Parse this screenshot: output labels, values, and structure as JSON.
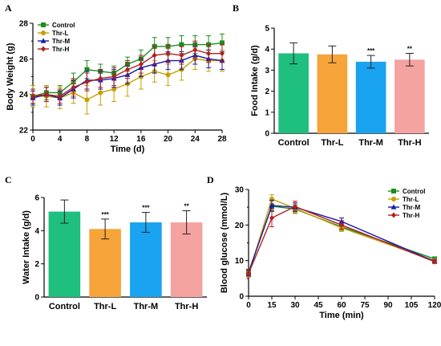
{
  "colors": {
    "Control": "#1e8c1e",
    "Thr-L": "#c8a000",
    "Thr-M": "#1a1aa6",
    "Thr-H": "#b02020",
    "bar_Control": "#1fbf7f",
    "bar_Thr-L": "#f7a43a",
    "bar_Thr-M": "#1aa3f0",
    "bar_Thr-H": "#f5a3a0"
  },
  "chart_data": [
    {
      "panel": "A",
      "type": "line",
      "xlabel": "Time (d)",
      "ylabel": "Body Weight (g)",
      "xlim": [
        0,
        28
      ],
      "ylim": [
        22,
        28
      ],
      "xticks": [
        0,
        4,
        8,
        12,
        16,
        20,
        24,
        28
      ],
      "yticks": [
        22,
        24,
        26,
        28
      ],
      "x": [
        0,
        2,
        4,
        6,
        8,
        10,
        12,
        14,
        16,
        18,
        20,
        22,
        24,
        26,
        28
      ],
      "legend": "top-left",
      "series": [
        {
          "name": "Control",
          "marker": "square",
          "values": [
            23.9,
            24.1,
            24.1,
            24.7,
            25.4,
            25.3,
            25.2,
            25.7,
            26.0,
            26.7,
            26.7,
            26.8,
            26.8,
            26.8,
            26.9
          ],
          "errors": [
            0.4,
            0.4,
            0.4,
            0.5,
            0.5,
            0.4,
            0.4,
            0.4,
            0.5,
            0.5,
            0.5,
            0.5,
            0.5,
            0.5,
            0.5
          ]
        },
        {
          "name": "Thr-L",
          "marker": "circle",
          "values": [
            23.9,
            23.9,
            23.8,
            24.1,
            23.7,
            24.1,
            24.3,
            24.6,
            25.0,
            25.3,
            25.1,
            25.4,
            26.0,
            25.9,
            25.9
          ],
          "errors": [
            0.6,
            0.6,
            0.6,
            0.6,
            0.8,
            0.7,
            0.7,
            0.7,
            0.7,
            0.6,
            0.6,
            0.6,
            0.6,
            0.6,
            0.6
          ]
        },
        {
          "name": "Thr-M",
          "marker": "triangle",
          "values": [
            23.8,
            24.0,
            23.8,
            24.3,
            24.8,
            24.8,
            24.9,
            25.1,
            25.5,
            25.7,
            25.9,
            25.9,
            26.2,
            26.0,
            25.9
          ],
          "errors": [
            0.4,
            0.4,
            0.4,
            0.5,
            0.5,
            0.5,
            0.5,
            0.5,
            0.5,
            0.5,
            0.5,
            0.5,
            0.5,
            0.5,
            0.5
          ]
        },
        {
          "name": "Thr-H",
          "marker": "diamond",
          "values": [
            23.9,
            24.0,
            23.9,
            24.4,
            24.7,
            24.9,
            25.0,
            25.4,
            25.7,
            26.2,
            26.3,
            26.2,
            26.5,
            26.3,
            26.3
          ],
          "errors": [
            0.4,
            0.4,
            0.4,
            0.5,
            0.5,
            0.5,
            0.5,
            0.5,
            0.5,
            0.5,
            0.5,
            0.5,
            0.5,
            0.5,
            0.5
          ]
        }
      ]
    },
    {
      "panel": "B",
      "type": "bar",
      "categories": [
        "Control",
        "Thr-L",
        "Thr-M",
        "Thr-H"
      ],
      "values": [
        3.8,
        3.75,
        3.4,
        3.5
      ],
      "errors": [
        0.5,
        0.4,
        0.3,
        0.3
      ],
      "significance": [
        "",
        "",
        "***",
        "**"
      ],
      "ylabel": "Food Intake (g/d)",
      "ylim": [
        0,
        5
      ],
      "yticks": [
        0,
        1,
        2,
        3,
        4,
        5
      ]
    },
    {
      "panel": "C",
      "type": "bar",
      "categories": [
        "Control",
        "Thr-L",
        "Thr-M",
        "Thr-H"
      ],
      "values": [
        5.15,
        4.1,
        4.5,
        4.5
      ],
      "errors": [
        0.7,
        0.6,
        0.6,
        0.7
      ],
      "significance": [
        "",
        "***",
        "***",
        "**"
      ],
      "ylabel": "Water Intake (g/d)",
      "ylim": [
        0,
        6
      ],
      "yticks": [
        0,
        2,
        4,
        6
      ]
    },
    {
      "panel": "D",
      "type": "line",
      "xlabel": "Time (min)",
      "ylabel": "Blood glucose (mmol/L)",
      "xlim": [
        0,
        120
      ],
      "ylim": [
        0,
        30
      ],
      "xticks": [
        0,
        15,
        30,
        45,
        60,
        75,
        90,
        105,
        120
      ],
      "yticks": [
        0,
        10,
        20,
        30
      ],
      "x": [
        0,
        15,
        30,
        60,
        120
      ],
      "legend": "top-right",
      "series": [
        {
          "name": "Control",
          "marker": "square",
          "values": [
            6.8,
            25.3,
            24.5,
            19.5,
            10.5
          ],
          "errors": [
            0.8,
            1.5,
            1.2,
            1.0,
            0.5
          ]
        },
        {
          "name": "Thr-L",
          "marker": "circle",
          "values": [
            6.2,
            27.3,
            24.7,
            19.2,
            10.0
          ],
          "errors": [
            0.8,
            1.2,
            1.5,
            1.0,
            0.5
          ]
        },
        {
          "name": "Thr-M",
          "marker": "triangle",
          "values": [
            6.6,
            25.5,
            25.0,
            21.0,
            9.8
          ],
          "errors": [
            0.8,
            1.5,
            1.2,
            1.0,
            0.5
          ]
        },
        {
          "name": "Thr-H",
          "marker": "diamond",
          "values": [
            6.4,
            22.0,
            25.2,
            20.0,
            9.7
          ],
          "errors": [
            0.8,
            2.5,
            1.5,
            1.2,
            0.5
          ]
        }
      ]
    }
  ]
}
